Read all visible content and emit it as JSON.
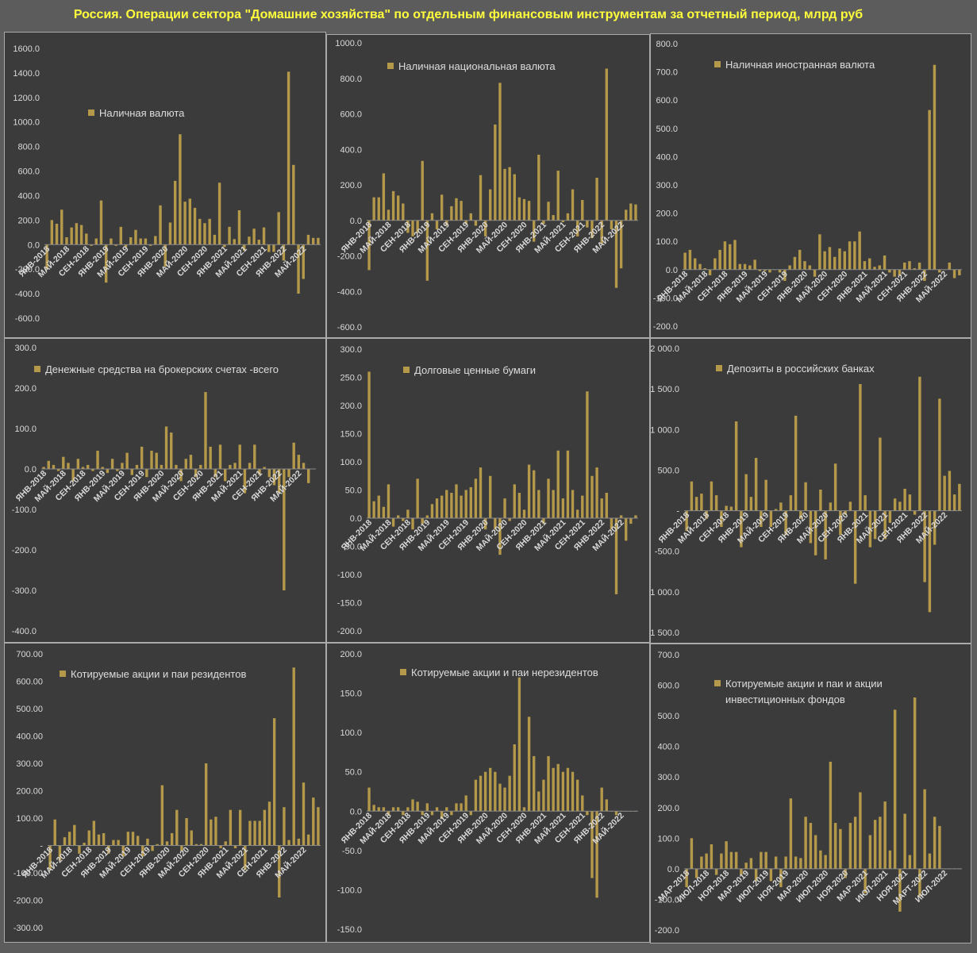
{
  "page": {
    "title": "Россия. Операции сектора \"Домашние хозяйства\" по отдельным финансовым инструментам за отчетный период, млрд руб"
  },
  "colors": {
    "bar": "#b5994a",
    "panel_bg": "#3b3b3b",
    "text": "#d9d9d9"
  },
  "chart_data": [
    {
      "type": "bar",
      "title": "",
      "legend": "Наличная валюта",
      "ylim": [
        -600,
        1600
      ],
      "ytick_step": 200,
      "ytick_labels": [
        "-600.0",
        "-400.0",
        "-200.0",
        "0.0",
        "200.0",
        "400.0",
        "600.0",
        "800.0",
        "1000.0",
        "1200.0",
        "1400.0",
        "1600.0"
      ],
      "xtick_labels": [
        "ЯНВ-2018",
        "МАЙ-2018",
        "СЕН-2018",
        "ЯНВ-2019",
        "МАЙ-2019",
        "СЕН-2019",
        "ЯНВ-2020",
        "МАЙ-2020",
        "СЕН-2020",
        "ЯНВ-2021",
        "МАЙ-2021",
        "СЕН-2021",
        "ЯНВ-2022",
        "МАЙ-2022"
      ],
      "values": [
        -200,
        200,
        170,
        285,
        60,
        140,
        175,
        160,
        90,
        -10,
        50,
        360,
        -310,
        50,
        -10,
        145,
        -20,
        60,
        120,
        50,
        50,
        -10,
        70,
        320,
        -180,
        180,
        520,
        900,
        350,
        375,
        300,
        210,
        175,
        210,
        80,
        505,
        -20,
        145,
        45,
        280,
        -50,
        65,
        130,
        40,
        140,
        -60,
        -60,
        265,
        -130,
        1410,
        650,
        -400,
        -280,
        80,
        55,
        55
      ]
    },
    {
      "type": "bar",
      "title": "",
      "legend": "Наличная национальная валюта",
      "ylim": [
        -600,
        1000
      ],
      "ytick_step": 200,
      "ytick_labels": [
        "-600.0",
        "-400.0",
        "-200.0",
        "0.0",
        "200.0",
        "400.0",
        "600.0",
        "800.0",
        "1000.0"
      ],
      "xtick_labels": [
        "ЯНВ-2018",
        "МАЙ-2018",
        "СЕН-2018",
        "ЯНВ-2019",
        "МАЙ-2019",
        "СЕН-2019",
        "ЯНВ-2020",
        "МАЙ-2020",
        "СЕН-2020",
        "ЯНВ-2021",
        "МАЙ-2021",
        "СЕН-2021",
        "ЯНВ-2022",
        "МАЙ-2022"
      ],
      "values": [
        -280,
        130,
        130,
        265,
        60,
        165,
        140,
        95,
        -70,
        -90,
        -70,
        335,
        -340,
        40,
        -50,
        145,
        -30,
        80,
        125,
        110,
        -20,
        40,
        -30,
        255,
        -90,
        175,
        540,
        775,
        290,
        300,
        260,
        130,
        120,
        110,
        -120,
        370,
        -20,
        105,
        30,
        280,
        -10,
        40,
        175,
        -90,
        115,
        -40,
        -100,
        240,
        -130,
        855,
        -50,
        -380,
        -270,
        60,
        95,
        90
      ]
    },
    {
      "type": "bar",
      "title": "",
      "legend": "Наличная иностранная валюта",
      "ylim": [
        -200,
        800
      ],
      "ytick_step": 100,
      "ytick_labels": [
        "-200.0",
        "-100.0",
        "0.0",
        "100.0",
        "200.0",
        "300.0",
        "400.0",
        "500.0",
        "600.0",
        "700.0",
        "800.0"
      ],
      "xtick_labels": [
        "ЯНВ-2018",
        "МАЙ-2018",
        "СЕН-2018",
        "ЯНВ-2019",
        "МАЙ-2019",
        "СЕН-2019",
        "ЯНВ-2020",
        "МАЙ-2020",
        "СЕН-2020",
        "ЯНВ-2021",
        "МАЙ-2021",
        "СЕН-2021",
        "ЯНВ-2022",
        "МАЙ-2022"
      ],
      "values": [
        60,
        70,
        40,
        20,
        5,
        -20,
        40,
        70,
        100,
        90,
        105,
        20,
        20,
        15,
        35,
        -5,
        -5,
        -10,
        0,
        -10,
        -40,
        15,
        45,
        70,
        30,
        15,
        -25,
        125,
        65,
        80,
        45,
        75,
        65,
        100,
        100,
        135,
        30,
        40,
        10,
        15,
        50,
        -10,
        -25,
        -20,
        25,
        30,
        5,
        25,
        -40,
        565,
        725,
        -10,
        0,
        25,
        -30,
        -20
      ]
    },
    {
      "type": "bar",
      "title": "",
      "legend": "Денежные средства на брокерских счетах -всего",
      "ylim": [
        -400,
        300
      ],
      "ytick_step": 100,
      "ytick_labels": [
        "-400.0",
        "-300.0",
        "-200.0",
        "-100.0",
        "0.0",
        "100.0",
        "200.0",
        "300.0"
      ],
      "xtick_labels": [
        "ЯНВ-2018",
        "МАЙ-2018",
        "СЕН-2018",
        "ЯНВ-2019",
        "МАЙ-2019",
        "СЕН-2019",
        "ЯНВ-2020",
        "МАЙ-2020",
        "СЕН-2020",
        "ЯНВ-2021",
        "МАЙ-2021",
        "СЕН-2021",
        "ЯНВ-2022",
        "МАЙ-2022"
      ],
      "values": [
        5,
        20,
        10,
        -5,
        30,
        15,
        -30,
        25,
        5,
        10,
        -5,
        45,
        5,
        -10,
        25,
        -5,
        15,
        40,
        -15,
        10,
        55,
        -20,
        45,
        40,
        10,
        105,
        90,
        10,
        -30,
        25,
        35,
        -20,
        10,
        190,
        55,
        -20,
        60,
        -30,
        10,
        15,
        60,
        -60,
        15,
        60,
        -15,
        5,
        -20,
        -40,
        -60,
        -300,
        -20,
        65,
        35,
        15,
        -35,
        0
      ]
    },
    {
      "type": "bar",
      "title": "",
      "legend": "Долговые ценные бумаги",
      "ylim": [
        -200,
        300
      ],
      "ytick_step": 50,
      "ytick_labels": [
        "-200.0",
        "-150.0",
        "-100.0",
        "-50.0",
        "0.0",
        "50.0",
        "100.0",
        "150.0",
        "200.0",
        "250.0",
        "300.0"
      ],
      "xtick_labels": [
        "ЯНВ-2018",
        "МАЙ-2018",
        "СЕН-2018",
        "ЯНВ-2019",
        "МАЙ-2019",
        "СЕН-2019",
        "ЯНВ-2020",
        "МАЙ-2020",
        "СЕН-2020",
        "ЯНВ-2021",
        "МАЙ-2021",
        "СЕН-2021",
        "ЯНВ-2022",
        "МАЙ-2022"
      ],
      "values": [
        260,
        30,
        40,
        20,
        60,
        -15,
        5,
        -5,
        15,
        -20,
        70,
        -10,
        5,
        25,
        35,
        40,
        50,
        45,
        60,
        40,
        50,
        55,
        70,
        90,
        -20,
        75,
        -20,
        -65,
        35,
        -5,
        60,
        45,
        15,
        95,
        85,
        50,
        -10,
        70,
        50,
        120,
        35,
        120,
        50,
        15,
        40,
        225,
        75,
        90,
        35,
        45,
        -20,
        -135,
        5,
        -40,
        -10,
        5
      ]
    },
    {
      "type": "bar",
      "title": "",
      "legend": "Депозиты в российских банках",
      "ylim": [
        -1500,
        2000
      ],
      "ytick_step": 500,
      "ytick_labels": [
        "-1 500.0",
        "-1 000.0",
        "-500.0",
        "-",
        "500.0",
        "1 000.0",
        "1 500.0",
        "2 000.0"
      ],
      "xtick_labels": [
        "ЯНВ-2018",
        "МАЙ-2018",
        "СЕН-2018",
        "ЯНВ-2019",
        "МАЙ-2019",
        "СЕН-2019",
        "ЯНВ-2020",
        "МАЙ-2020",
        "СЕН-2020",
        "ЯНВ-2021",
        "МАЙ-2021",
        "СЕН-2021",
        "ЯНВ-2022",
        "МАЙ-2022"
      ],
      "values": [
        -250,
        360,
        170,
        210,
        -100,
        360,
        190,
        -200,
        60,
        50,
        1100,
        -450,
        450,
        170,
        650,
        -200,
        380,
        -200,
        20,
        100,
        -300,
        190,
        1170,
        -100,
        350,
        -400,
        -550,
        260,
        -600,
        100,
        580,
        -300,
        -50,
        110,
        -900,
        1560,
        190,
        -450,
        -350,
        900,
        -350,
        -150,
        150,
        110,
        270,
        200,
        -50,
        1650,
        -880,
        -1250,
        -420,
        1380,
        430,
        490,
        200,
        330
      ]
    },
    {
      "type": "bar",
      "title": "",
      "legend": "Котируемые акции и паи резидентов",
      "ylim": [
        -300,
        700
      ],
      "ytick_step": 100,
      "ytick_labels": [
        "-300.00",
        "-200.00",
        "-100.00",
        "-",
        "100.00",
        "200.00",
        "300.00",
        "400.00",
        "500.00",
        "600.00",
        "700.00"
      ],
      "xtick_labels": [
        "ЯНВ-2018",
        "МАЙ-2018",
        "СЕН-2018",
        "ЯНВ-2019",
        "МАЙ-2019",
        "СЕН-2019",
        "ЯНВ-2020",
        "МАЙ-2020",
        "СЕН-2020",
        "ЯНВ-2021",
        "МАЙ-2021",
        "СЕН-2021",
        "ЯНВ-2022",
        "МАЙ-2022"
      ],
      "values": [
        -90,
        95,
        -55,
        30,
        50,
        75,
        -30,
        10,
        55,
        90,
        40,
        45,
        -30,
        20,
        20,
        -40,
        50,
        50,
        35,
        -40,
        25,
        -20,
        5,
        220,
        15,
        45,
        130,
        -20,
        100,
        55,
        5,
        5,
        300,
        95,
        105,
        -10,
        15,
        130,
        -10,
        130,
        -90,
        90,
        90,
        90,
        130,
        160,
        465,
        -190,
        140,
        20,
        650,
        25,
        230,
        40,
        175,
        140
      ]
    },
    {
      "type": "bar",
      "title": "",
      "legend": "Котируемые акции и паи нерезидентов",
      "ylim": [
        -150,
        200
      ],
      "ytick_step": 50,
      "ytick_labels": [
        "-150.0",
        "-100.0",
        "-50.0",
        "0.0",
        "50.0",
        "100.0",
        "150.0",
        "200.0"
      ],
      "xtick_labels": [
        "ЯНВ-2018",
        "МАЙ-2018",
        "СЕН-2018",
        "ЯНВ-2019",
        "МАЙ-2019",
        "СЕН-2019",
        "ЯНВ-2020",
        "МАЙ-2020",
        "СЕН-2020",
        "ЯНВ-2021",
        "МАЙ-2021",
        "СЕН-2021",
        "ЯНВ-2022",
        "МАЙ-2022"
      ],
      "values": [
        30,
        8,
        5,
        5,
        -5,
        5,
        5,
        -5,
        5,
        15,
        12,
        -5,
        10,
        -5,
        5,
        -10,
        5,
        -5,
        10,
        10,
        20,
        -5,
        40,
        45,
        50,
        55,
        50,
        35,
        30,
        45,
        85,
        170,
        5,
        120,
        70,
        25,
        40,
        70,
        55,
        60,
        50,
        55,
        50,
        40,
        20,
        -5,
        -85,
        -110,
        30,
        15,
        0,
        -5,
        0,
        0,
        0,
        0
      ]
    },
    {
      "type": "bar",
      "title": "",
      "legend": "Котируемые акции и паи и акции\nинвестиционных фондов",
      "ylim": [
        -200,
        700
      ],
      "ytick_step": 100,
      "ytick_labels": [
        "-200.0",
        "-100.0",
        "0.0",
        "100.0",
        "200.0",
        "300.0",
        "400.0",
        "500.0",
        "600.0",
        "700.0"
      ],
      "xtick_labels": [
        "МАР-2018",
        "ИЮЛ-2018",
        "НОЯ-2018",
        "МАР-2019",
        "ИЮЛ-2019",
        "НОЯ-2019",
        "МАР-2020",
        "ИЮЛ-2020",
        "НОЯ-2020",
        "МАР-2021",
        "ИЮЛ-2021",
        "НОЯ-2021",
        "МАРТ-2022",
        "ИЮЛ-2022"
      ],
      "values": [
        -60,
        100,
        -30,
        40,
        50,
        80,
        -20,
        50,
        90,
        55,
        55,
        -20,
        20,
        35,
        -40,
        55,
        55,
        -40,
        40,
        -60,
        40,
        230,
        40,
        35,
        170,
        150,
        110,
        60,
        45,
        350,
        150,
        130,
        -30,
        150,
        170,
        250,
        -80,
        110,
        160,
        170,
        220,
        60,
        520,
        -140,
        180,
        45,
        560,
        -90,
        260,
        50,
        170,
        140,
        0,
        0,
        0,
        0
      ]
    }
  ]
}
